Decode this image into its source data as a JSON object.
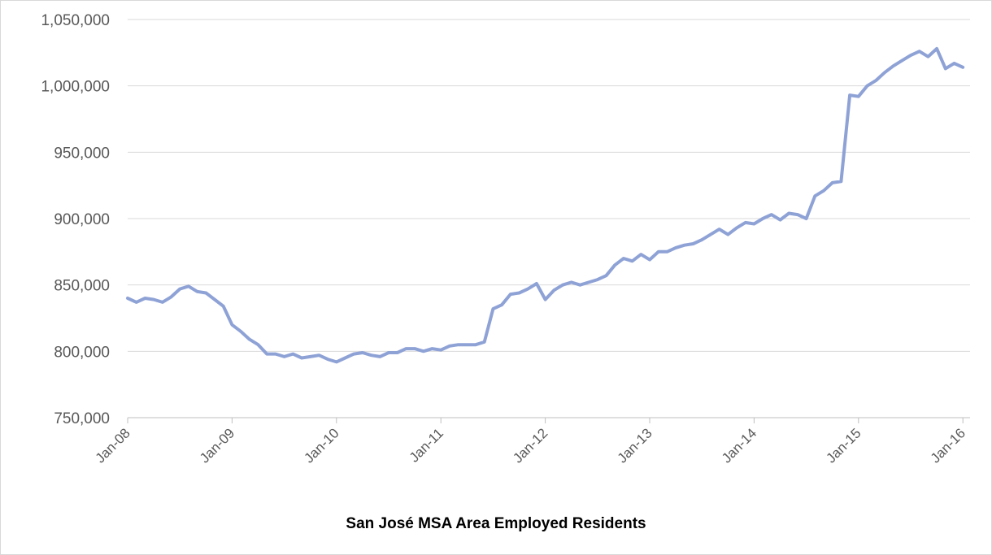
{
  "chart_data": {
    "type": "line",
    "title": "San José MSA Area Employed Residents",
    "xlabel": "",
    "ylabel": "",
    "ylim": [
      750000,
      1050000
    ],
    "y_ticks": [
      750000,
      800000,
      850000,
      900000,
      950000,
      1000000,
      1050000
    ],
    "y_tick_labels": [
      "750,000",
      "800,000",
      "850,000",
      "900,000",
      "950,000",
      "1,000,000",
      "1,050,000"
    ],
    "x_tick_labels": [
      "Jan-08",
      "Jan-09",
      "Jan-10",
      "Jan-11",
      "Jan-12",
      "Jan-13",
      "Jan-14",
      "Jan-15",
      "Jan-16"
    ],
    "x_start": "Jan-08",
    "grid": true,
    "colors": {
      "line": "#8EA2D6",
      "grid": "#d9d9d9",
      "axis": "#bfbfbf"
    },
    "series": [
      {
        "name": "",
        "values": [
          840000,
          837000,
          840000,
          839000,
          837000,
          841000,
          847000,
          849000,
          845000,
          844000,
          839000,
          834000,
          820000,
          815000,
          809000,
          805000,
          798000,
          798000,
          796000,
          798000,
          795000,
          796000,
          797000,
          794000,
          792000,
          795000,
          798000,
          799000,
          797000,
          796000,
          799000,
          799000,
          802000,
          802000,
          800000,
          802000,
          801000,
          804000,
          805000,
          805000,
          805000,
          807000,
          832000,
          835000,
          843000,
          844000,
          847000,
          851000,
          839000,
          846000,
          850000,
          852000,
          850000,
          852000,
          854000,
          857000,
          865000,
          870000,
          868000,
          873000,
          869000,
          875000,
          875000,
          878000,
          880000,
          881000,
          884000,
          888000,
          892000,
          888000,
          893000,
          897000,
          896000,
          900000,
          903000,
          899000,
          904000,
          903000,
          900000,
          917000,
          921000,
          927000,
          928000,
          993000,
          992000,
          1000000,
          1004000,
          1010000,
          1015000,
          1019000,
          1023000,
          1026000,
          1022000,
          1028000,
          1013000,
          1017000,
          1014000
        ]
      }
    ]
  }
}
